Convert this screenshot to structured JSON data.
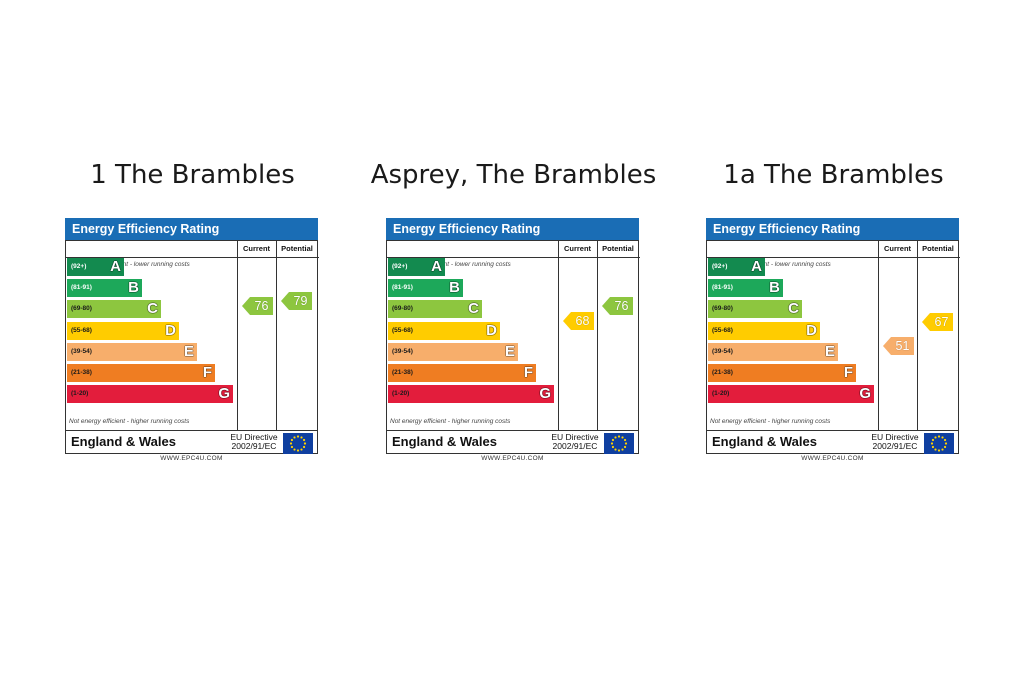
{
  "colors": {
    "header": "#1a6db5",
    "eu_flag": "#0f3fa0",
    "eu_stars": "#ffd200",
    "band_colors": [
      "#138a4f",
      "#1da85a",
      "#8dc63f",
      "#ffcc00",
      "#f7ae6b",
      "#ef7d22",
      "#e31d3c"
    ],
    "band_text_colors": [
      "#ffffff",
      "#ffffff",
      "#1a1a1a",
      "#1a1a1a",
      "#1a1a1a",
      "#1a1a1a",
      "#1a1a1a"
    ]
  },
  "labels": {
    "header": "Energy Efficiency Rating",
    "col_current": "Current",
    "col_potential": "Potential",
    "note_top": "Very energy efficient - lower running costs",
    "note_bottom": "Not energy efficient - higher running costs",
    "country": "England & Wales",
    "directive_line1": "EU Directive",
    "directive_line2": "2002/91/EC",
    "site": "WWW.EPC4U.COM"
  },
  "chart_data": [
    {
      "type": "bar",
      "title": "1 The Brambles",
      "bands": [
        {
          "letter": "A",
          "range": "(92+)"
        },
        {
          "letter": "B",
          "range": "(81-91)"
        },
        {
          "letter": "C",
          "range": "(69-80)"
        },
        {
          "letter": "D",
          "range": "(55-68)"
        },
        {
          "letter": "E",
          "range": "(39-54)"
        },
        {
          "letter": "F",
          "range": "(21-38)"
        },
        {
          "letter": "G",
          "range": "(1-20)"
        }
      ],
      "current": 76,
      "potential": 79
    },
    {
      "type": "bar",
      "title": "Asprey,  The Brambles",
      "bands": [
        {
          "letter": "A",
          "range": "(92+)"
        },
        {
          "letter": "B",
          "range": "(81-91)"
        },
        {
          "letter": "C",
          "range": "(69-80)"
        },
        {
          "letter": "D",
          "range": "(55-68)"
        },
        {
          "letter": "E",
          "range": "(39-54)"
        },
        {
          "letter": "F",
          "range": "(21-38)"
        },
        {
          "letter": "G",
          "range": "(1-20)"
        }
      ],
      "current": 68,
      "potential": 76
    },
    {
      "type": "bar",
      "title": "1a The Brambles",
      "bands": [
        {
          "letter": "A",
          "range": "(92+)"
        },
        {
          "letter": "B",
          "range": "(81-91)"
        },
        {
          "letter": "C",
          "range": "(69-80)"
        },
        {
          "letter": "D",
          "range": "(55-68)"
        },
        {
          "letter": "E",
          "range": "(39-54)"
        },
        {
          "letter": "F",
          "range": "(21-38)"
        },
        {
          "letter": "G",
          "range": "(1-20)"
        }
      ],
      "current": 51,
      "potential": 67
    }
  ]
}
